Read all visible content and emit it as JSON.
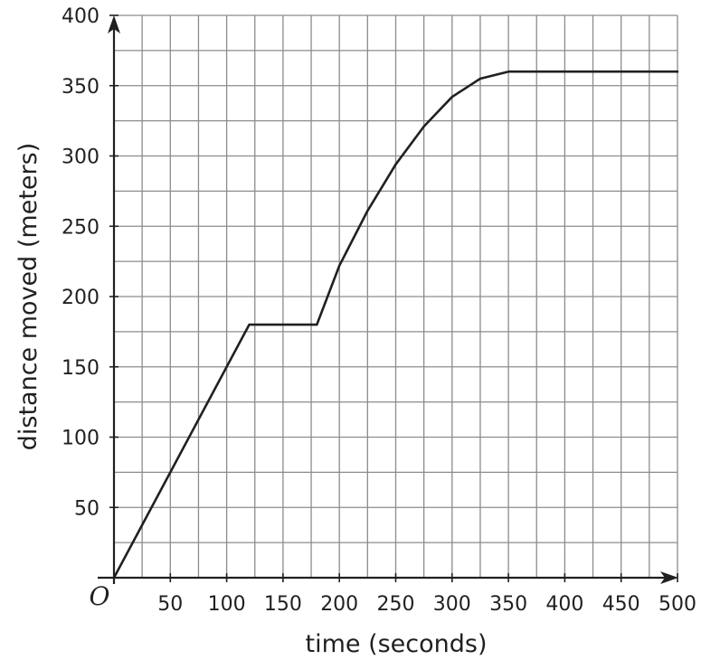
{
  "chart_data": {
    "type": "line",
    "xlabel": "time (seconds)",
    "ylabel": "distance moved (meters)",
    "origin_label": "O",
    "xlim": [
      0,
      500
    ],
    "ylim": [
      0,
      400
    ],
    "x_ticks": [
      50,
      100,
      150,
      200,
      250,
      300,
      350,
      400,
      450,
      500
    ],
    "y_ticks": [
      50,
      100,
      150,
      200,
      250,
      300,
      350,
      400
    ],
    "x_tick_labels": [
      "50",
      "100",
      "150",
      "200",
      "250",
      "300",
      "350",
      "400",
      "450",
      "500"
    ],
    "y_tick_labels": [
      "50",
      "100",
      "150",
      "200",
      "250",
      "300",
      "350",
      "400"
    ],
    "grid": true,
    "grid_x_step": 25,
    "grid_y_step": 25,
    "series": [
      {
        "points": [
          {
            "x": 0,
            "y": 0
          },
          {
            "x": 120,
            "y": 180
          },
          {
            "x": 180,
            "y": 180
          },
          {
            "x": 200,
            "y": 222
          },
          {
            "x": 225,
            "y": 261
          },
          {
            "x": 250,
            "y": 294
          },
          {
            "x": 275,
            "y": 321
          },
          {
            "x": 300,
            "y": 342
          },
          {
            "x": 325,
            "y": 355
          },
          {
            "x": 350,
            "y": 360
          },
          {
            "x": 360,
            "y": 360
          },
          {
            "x": 500,
            "y": 360
          }
        ]
      }
    ],
    "colors": {
      "line": "#231f20",
      "grid": "#8c8c8c",
      "axis": "#231f20"
    }
  }
}
